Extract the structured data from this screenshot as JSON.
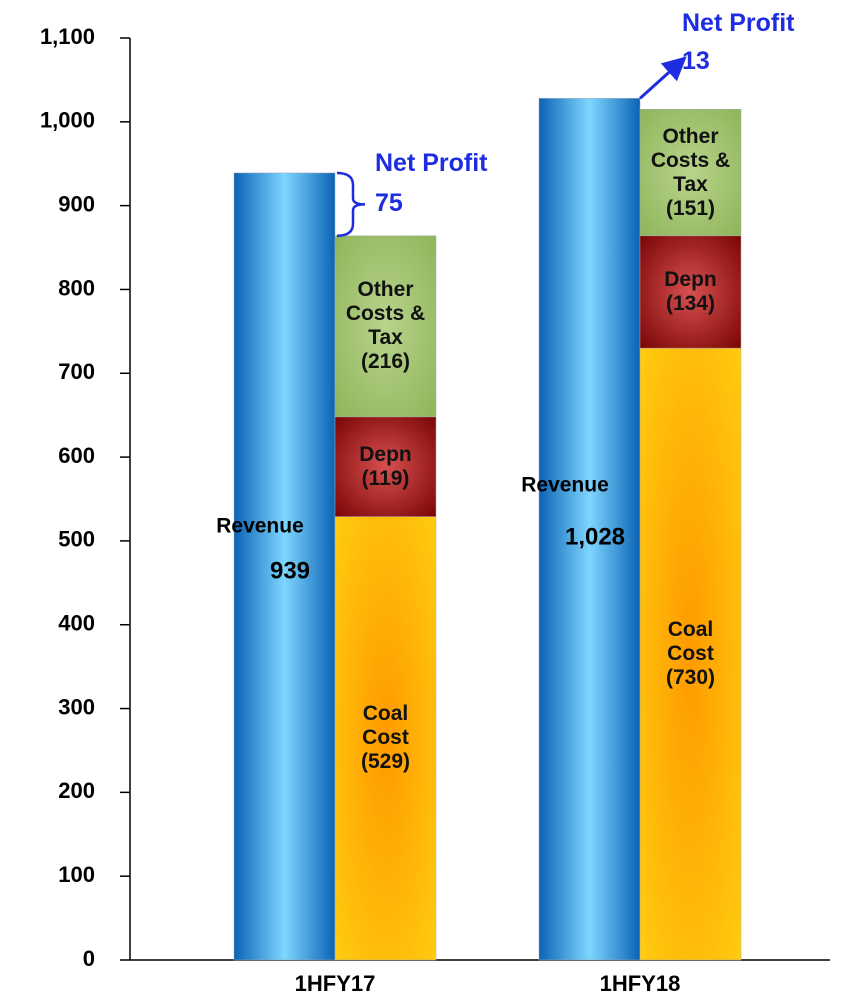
{
  "chart_data": {
    "type": "bar",
    "categories": [
      "1HFY17",
      "1HFY18"
    ],
    "revenue": {
      "name": "Revenue",
      "values": [
        939,
        1028
      ],
      "value_labels": [
        "939",
        "1,028"
      ]
    },
    "series": [
      {
        "name": "Coal Cost",
        "color": "#ffb300",
        "values": [
          529,
          730
        ],
        "value_labels": [
          "(529)",
          "(730)"
        ]
      },
      {
        "name": "Depn",
        "color": "#a01818",
        "values": [
          119,
          134
        ],
        "value_labels": [
          "(119)",
          "(134)"
        ]
      },
      {
        "name": "Other Costs & Tax",
        "color": "#9fc26e",
        "values": [
          216,
          151
        ],
        "value_labels": [
          "(216)",
          "(151)"
        ]
      }
    ],
    "net_profit": {
      "name": "Net Profit",
      "values": [
        75,
        13
      ]
    },
    "ylim": [
      0,
      1100
    ],
    "yticks": [
      0,
      100,
      200,
      300,
      400,
      500,
      600,
      700,
      800,
      900,
      {
        "value": 1000,
        "label": "1,000"
      },
      {
        "value": 1100,
        "label": "1,100"
      }
    ]
  }
}
